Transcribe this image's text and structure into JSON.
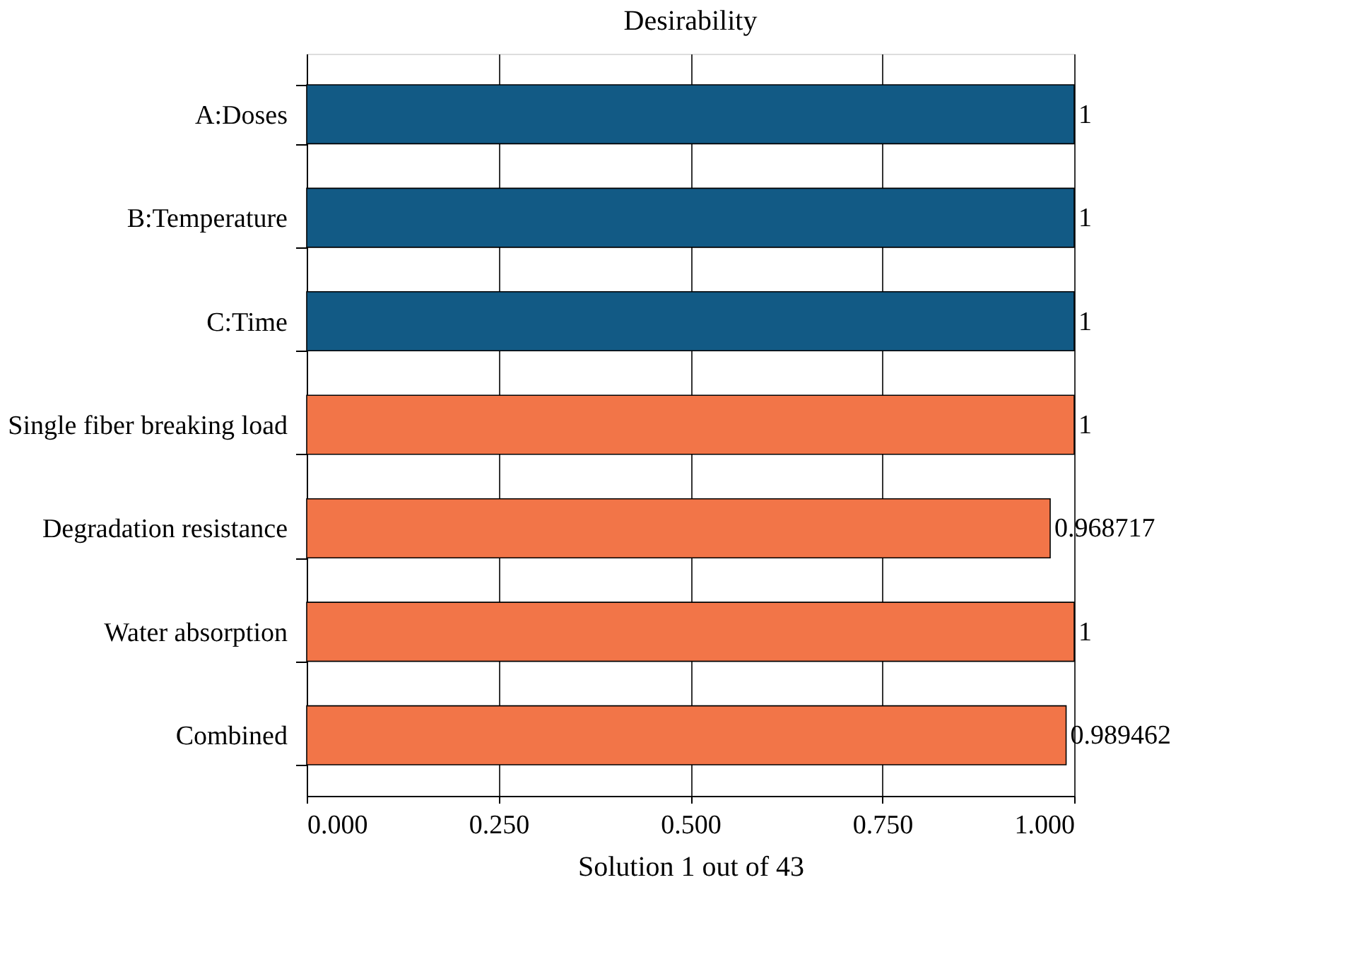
{
  "chart_data": {
    "type": "bar",
    "orientation": "horizontal",
    "title": "Desirability",
    "xlabel": "Solution 1 out of 43",
    "categories": [
      "A:Doses",
      "B:Temperature",
      "C:Time",
      "Single fiber breaking load",
      "Degradation resistance",
      "Water absorption",
      "Combined"
    ],
    "values": [
      1,
      1,
      1,
      1,
      0.968717,
      1,
      0.989462
    ],
    "colors": [
      "#125a85",
      "#125a85",
      "#125a85",
      "#f27548",
      "#f27548",
      "#f27548",
      "#f27548"
    ],
    "xlim": [
      0,
      1
    ],
    "xticks": [
      {
        "value": 0,
        "label": "0.000"
      },
      {
        "value": 0.25,
        "label": "0.250"
      },
      {
        "value": 0.5,
        "label": "0.500"
      },
      {
        "value": 0.75,
        "label": "0.750"
      },
      {
        "value": 1,
        "label": "1.000"
      }
    ],
    "grid": "x",
    "data_labels": true,
    "legend": false
  }
}
